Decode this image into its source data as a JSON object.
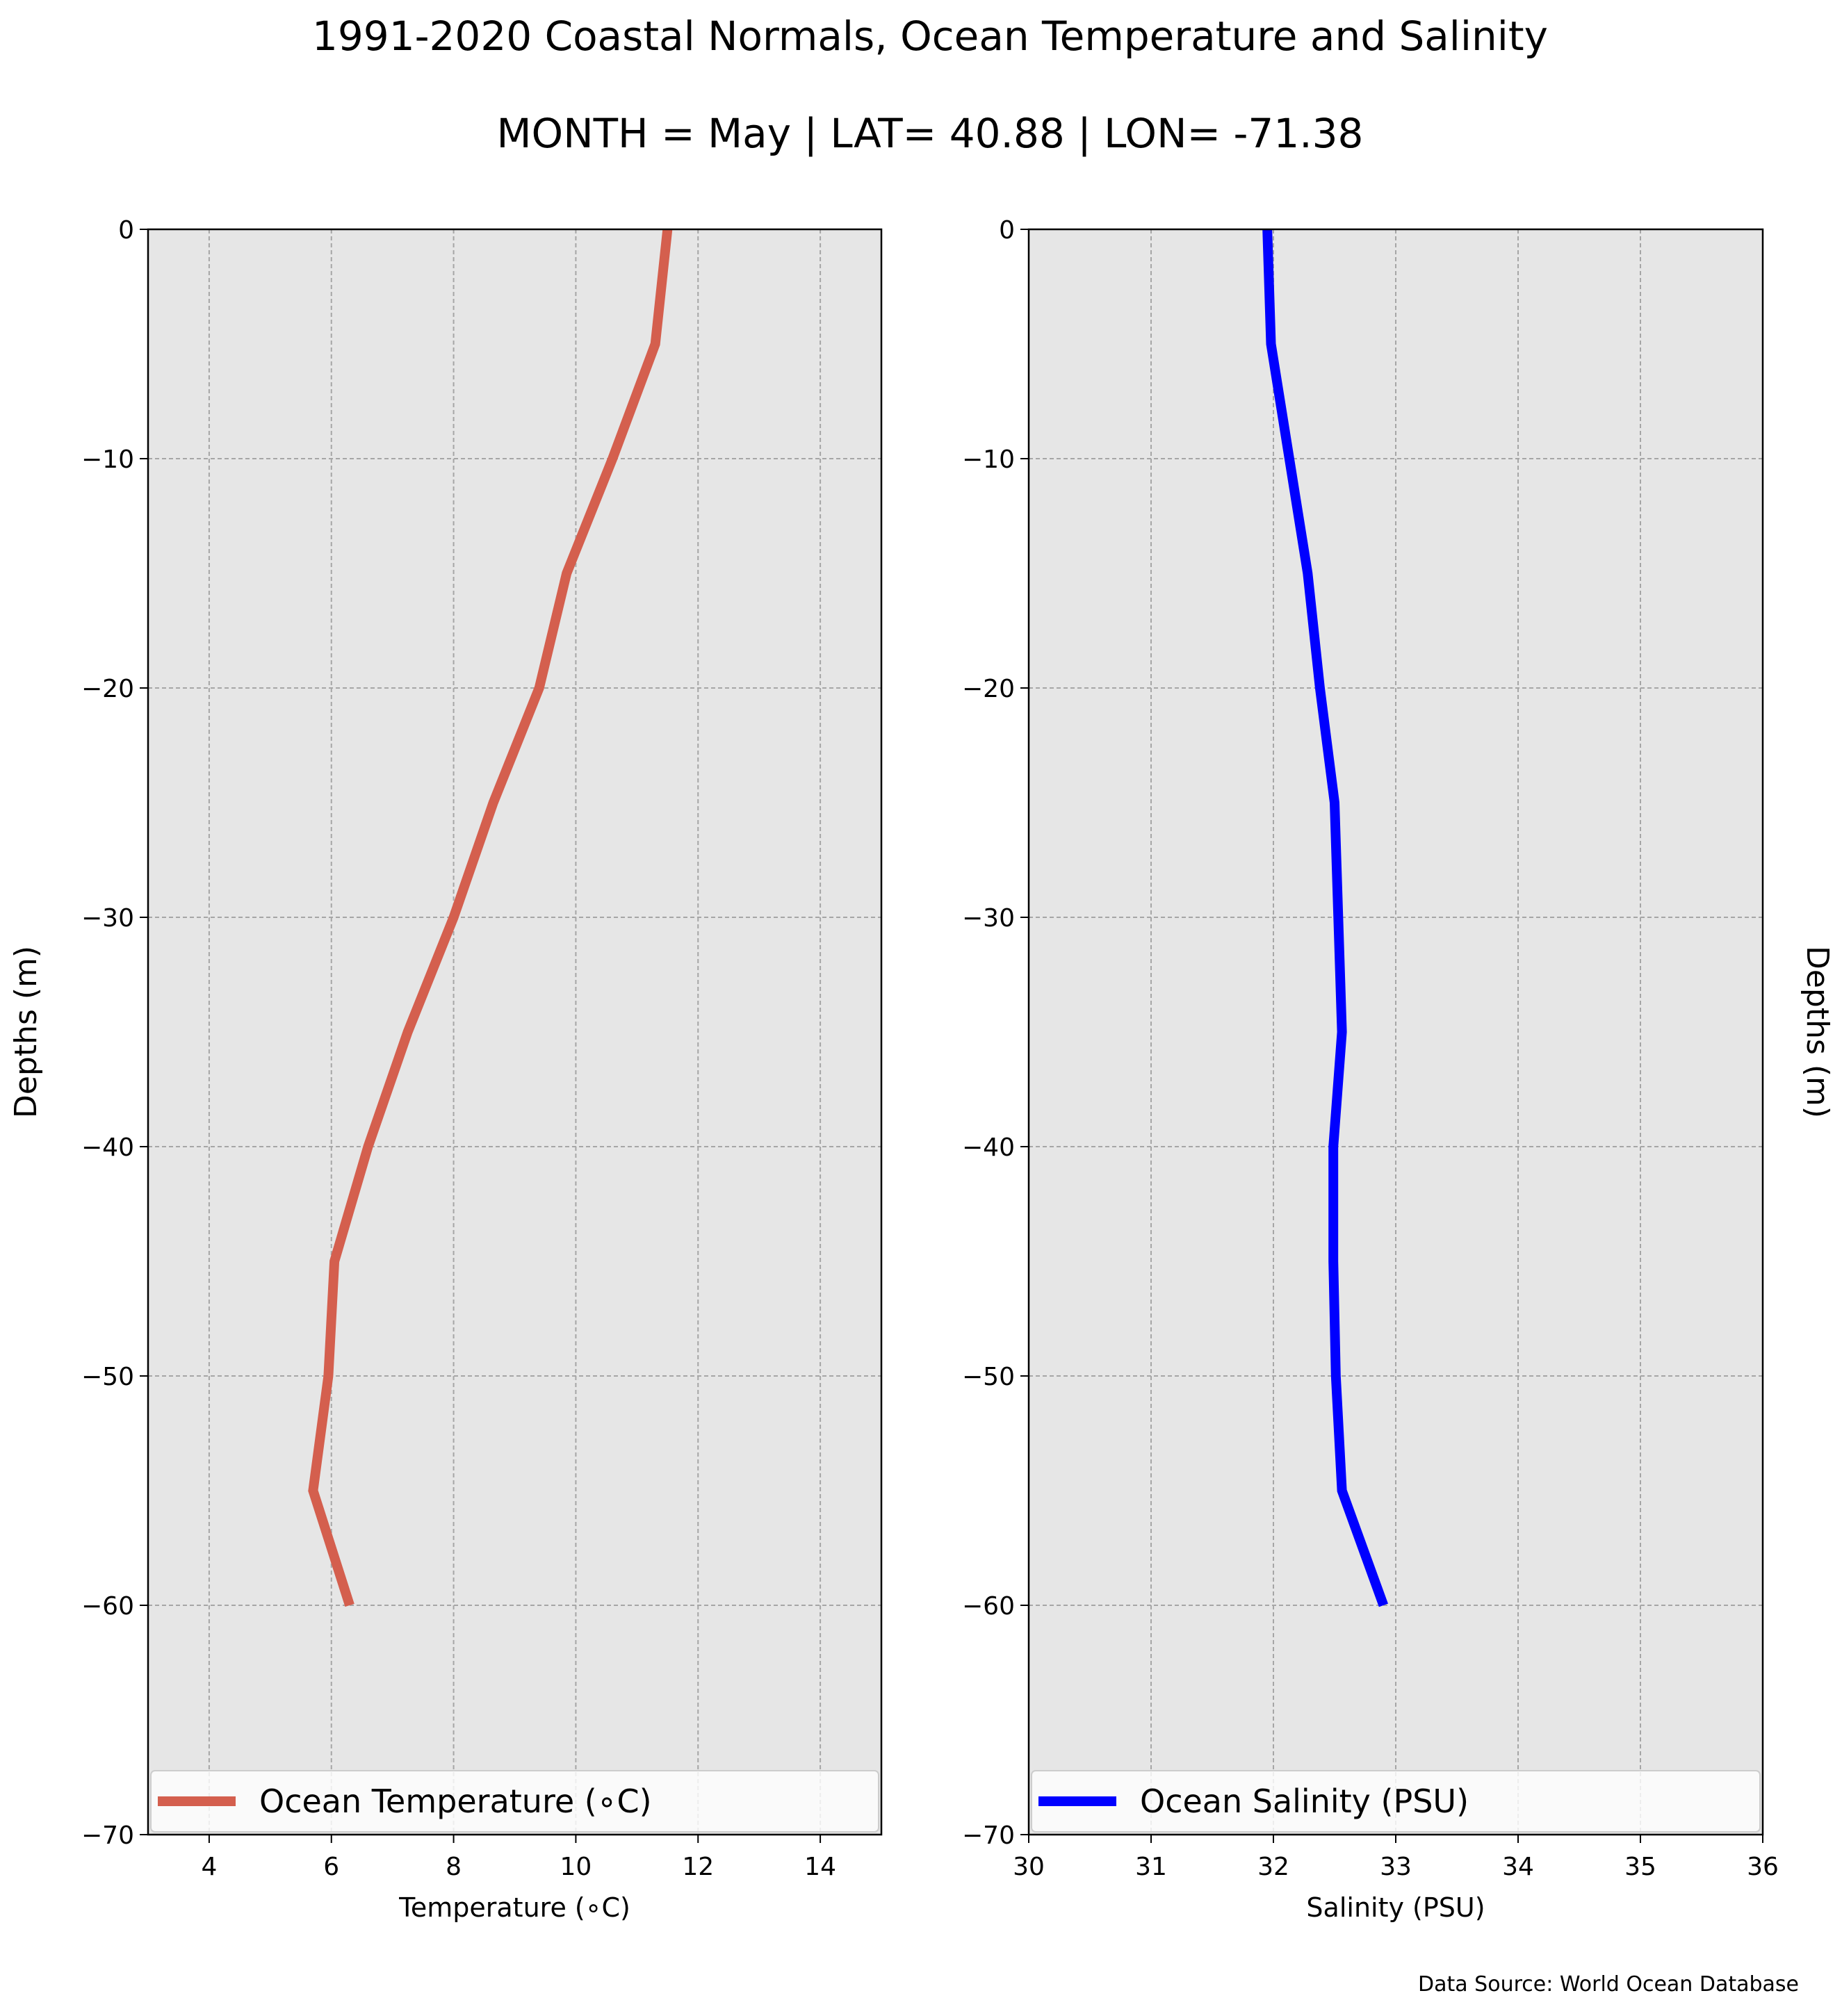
{
  "figure": {
    "title_line1": "1991-2020 Coastal Normals, Ocean Temperature and Salinity",
    "title_line2": "MONTH = May | LAT= 40.88 | LON= -71.38",
    "source_note": "Data Source: World Ocean Database"
  },
  "chart_data": [
    {
      "type": "line",
      "orientation": "vertical-profile",
      "xlabel": "Temperature ($^\\circ$C)",
      "xlabel_display": "Temperature (∘C)",
      "ylabel": "Depths (m)",
      "xlim": [
        3,
        15
      ],
      "ylim": [
        -70,
        0
      ],
      "xticks": [
        4,
        6,
        8,
        10,
        12,
        14
      ],
      "yticks": [
        0,
        -10,
        -20,
        -30,
        -40,
        -50,
        -60,
        -70
      ],
      "ytick_labels": [
        "0",
        "−10",
        "−20",
        "−30",
        "−40",
        "−50",
        "−60",
        "−70"
      ],
      "grid": true,
      "legend_position": "bottom",
      "series": [
        {
          "name": "Ocean Temperature (∘C)",
          "color": "#d45f4e",
          "x": [
            11.5,
            11.3,
            10.6,
            9.85,
            9.4,
            8.65,
            8.0,
            7.25,
            6.6,
            6.05,
            5.95,
            5.7,
            6.3
          ],
          "y": [
            0,
            -5,
            -10,
            -15,
            -20,
            -25,
            -30,
            -35,
            -40,
            -45,
            -50,
            -55,
            -60
          ]
        }
      ]
    },
    {
      "type": "line",
      "orientation": "vertical-profile",
      "xlabel": "Salinity (PSU)",
      "ylabel": "Depths (m)",
      "xlim": [
        30,
        36
      ],
      "ylim": [
        -70,
        0
      ],
      "xticks": [
        30,
        31,
        32,
        33,
        34,
        35,
        36
      ],
      "yticks": [
        0,
        -10,
        -20,
        -30,
        -40,
        -50,
        -60,
        -70
      ],
      "ytick_labels": [
        "0",
        "−10",
        "−20",
        "−30",
        "−40",
        "−50",
        "−60",
        "−70"
      ],
      "grid": true,
      "legend_position": "bottom",
      "series": [
        {
          "name": "Ocean Salinity (PSU)",
          "color": "#0000ff",
          "x": [
            31.95,
            31.98,
            32.13,
            32.28,
            32.38,
            32.5,
            32.53,
            32.56,
            32.49,
            32.49,
            32.51,
            32.56,
            32.9
          ],
          "y": [
            0,
            -5,
            -10,
            -15,
            -20,
            -25,
            -30,
            -35,
            -40,
            -45,
            -50,
            -55,
            -60
          ]
        }
      ]
    }
  ]
}
